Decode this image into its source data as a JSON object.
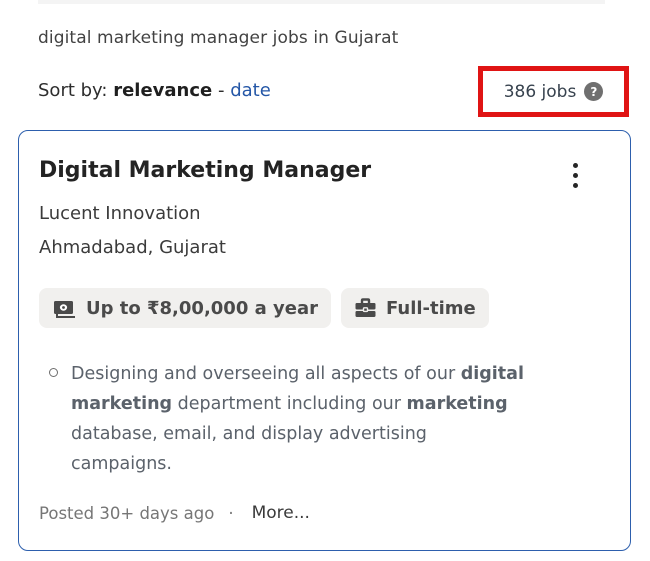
{
  "page": {
    "search_summary": "digital marketing manager jobs in Gujarat",
    "sort": {
      "label": "Sort by:",
      "selected": "relevance",
      "separator": "-",
      "date_option": "date"
    },
    "jobs_count": "386 jobs",
    "help_icon_glyph": "?"
  },
  "job_card": {
    "title": "Digital Marketing Manager",
    "company": "Lucent Innovation",
    "location": "Ahmadabad, Gujarat",
    "badges": [
      {
        "icon": "salary-icon",
        "label": "Up to ₹8,00,000 a year"
      },
      {
        "icon": "briefcase-icon",
        "label": "Full-time"
      }
    ],
    "description_lines": [
      [
        {
          "t": "Designing and overseeing all aspects of our ",
          "b": false
        },
        {
          "t": "digital",
          "b": true
        }
      ],
      [
        {
          "t": "marketing",
          "b": true
        },
        {
          "t": " department including our ",
          "b": false
        },
        {
          "t": "marketing",
          "b": true
        }
      ],
      [
        {
          "t": "database, email, and display advertising",
          "b": false
        }
      ],
      [
        {
          "t": "campaigns.",
          "b": false
        }
      ]
    ],
    "posted": "Posted 30+ days ago",
    "separator": "·",
    "more_label": "More..."
  },
  "colors": {
    "annotation_red": "#e01414",
    "card_border_blue": "#2d5fad",
    "link_blue": "#2557a7",
    "badge_background": "#f1f0ee"
  }
}
